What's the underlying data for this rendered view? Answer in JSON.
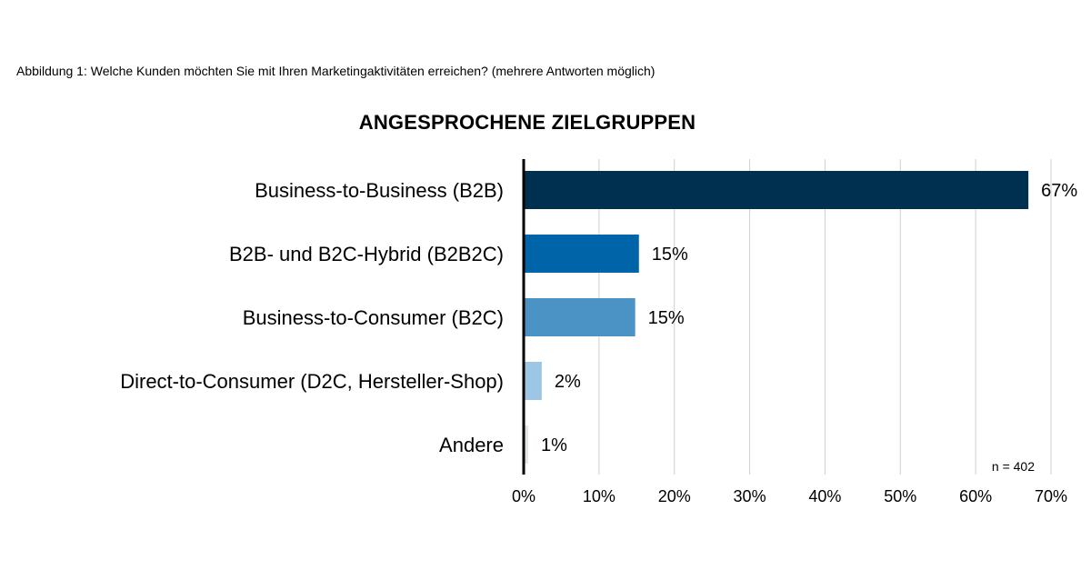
{
  "caption": "Abbildung 1: Welche Kunden möchten Sie mit Ihren Marketingaktivitäten erreichen? (mehrere Antworten möglich)",
  "chart_data": {
    "type": "bar",
    "orientation": "horizontal",
    "title": "ANGESPROCHENE ZIELGRUPPEN",
    "categories": [
      "Business-to-Business (B2B)",
      "B2B- und B2C-Hybrid (B2B2C)",
      "Business-to-Consumer (B2C)",
      "Direct-to-Consumer (D2C, Hersteller-Shop)",
      "Andere"
    ],
    "values": [
      67,
      15.3,
      14.8,
      2.4,
      0.6
    ],
    "value_labels": [
      "67%",
      "15%",
      "15%",
      "2%",
      "1%"
    ],
    "colors": [
      "#003050",
      "#0065a8",
      "#4a93c4",
      "#9cc6e4",
      "#e2e6ea"
    ],
    "xlim": [
      0,
      70
    ],
    "xticks": [
      0,
      10,
      20,
      30,
      40,
      50,
      60,
      70
    ],
    "xtick_labels": [
      "0%",
      "10%",
      "20%",
      "30%",
      "40%",
      "50%",
      "60%",
      "70%"
    ],
    "grid": true,
    "note": "n = 402",
    "xlabel": "",
    "ylabel": ""
  }
}
